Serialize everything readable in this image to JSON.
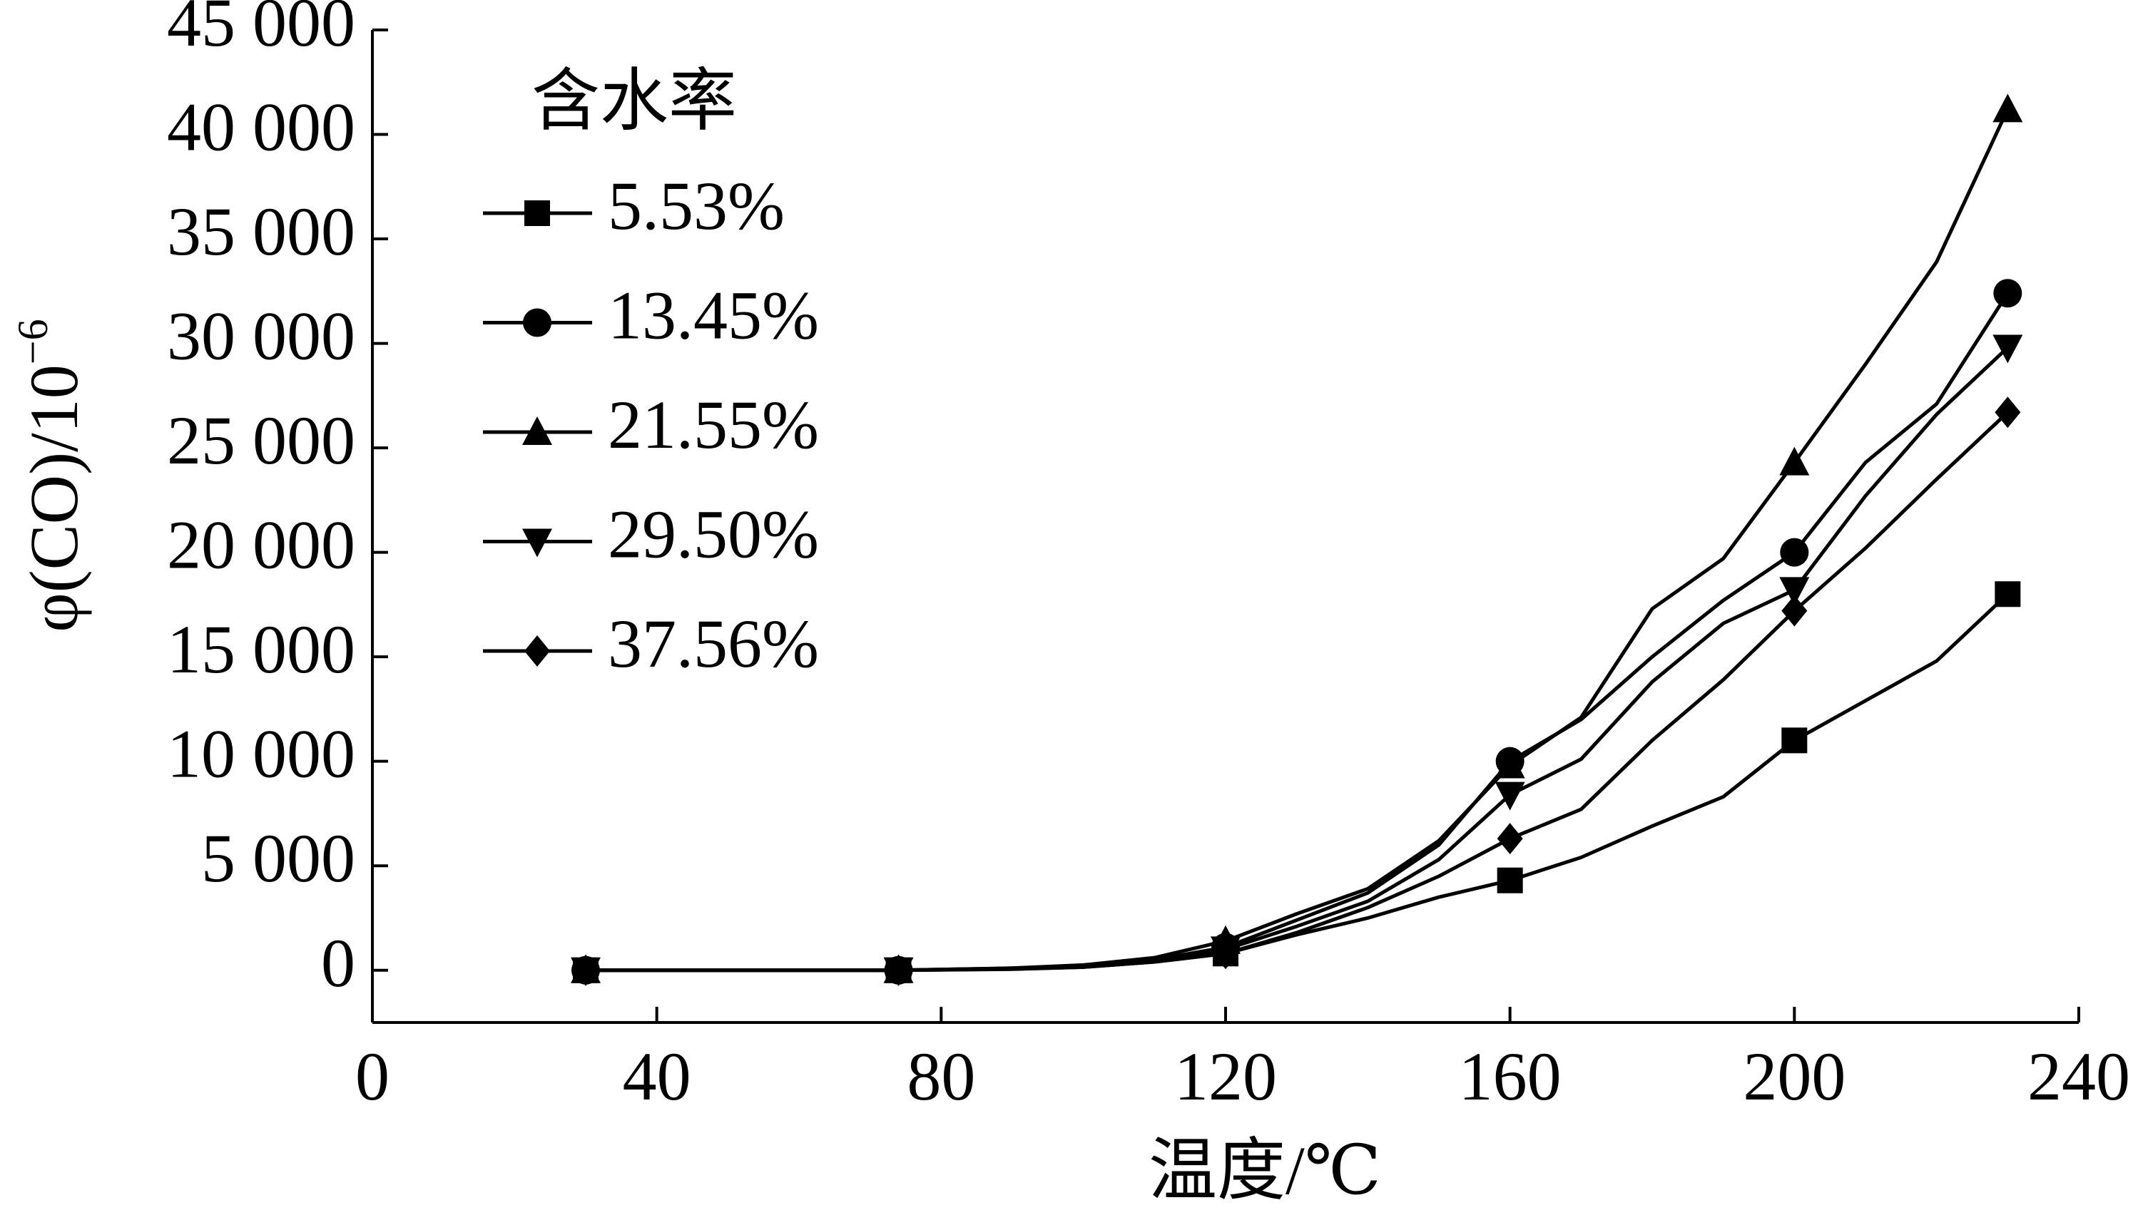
{
  "chart_data": {
    "type": "line",
    "x_label": "温度/℃",
    "y_label": {
      "text": "φ(CO)/10",
      "exponent": "−6"
    },
    "legend_title": "含水率",
    "legend_position": "upper left",
    "x": [
      30,
      74,
      90,
      100,
      110,
      120,
      130,
      140,
      150,
      160,
      170,
      180,
      190,
      200,
      210,
      220,
      230
    ],
    "marker_x": [
      30,
      74,
      120,
      160,
      200,
      230
    ],
    "series": [
      {
        "name": "5.53%",
        "color": "#000000",
        "marker": "square",
        "values": [
          0,
          0,
          50,
          150,
          400,
          800,
          1700,
          2500,
          3500,
          4300,
          5400,
          6900,
          8300,
          11000,
          12900,
          14800,
          18000
        ]
      },
      {
        "name": "13.45%",
        "color": "#000000",
        "marker": "circle",
        "values": [
          0,
          0,
          100,
          200,
          500,
          1100,
          2400,
          3700,
          6000,
          10000,
          12000,
          15000,
          17700,
          20000,
          24300,
          27100,
          32400
        ]
      },
      {
        "name": "21.55%",
        "color": "#000000",
        "marker": "triangle",
        "values": [
          0,
          0,
          100,
          250,
          600,
          1400,
          2700,
          3900,
          6200,
          9800,
          12100,
          17300,
          19700,
          24300,
          29000,
          33900,
          41200
        ]
      },
      {
        "name": "29.50%",
        "color": "#000000",
        "marker": "triangle-down",
        "values": [
          0,
          0,
          80,
          200,
          450,
          1000,
          2100,
          3300,
          5300,
          8400,
          10100,
          13800,
          16600,
          18200,
          22700,
          26600,
          29800
        ]
      },
      {
        "name": "37.56%",
        "color": "#000000",
        "marker": "diamond",
        "values": [
          0,
          0,
          60,
          150,
          400,
          800,
          1800,
          3000,
          4500,
          6300,
          7700,
          11000,
          13900,
          17200,
          20200,
          23500,
          26700
        ]
      }
    ],
    "xlim": [
      0,
      240
    ],
    "xticks": [
      0,
      40,
      80,
      120,
      160,
      200,
      240
    ],
    "ylim": [
      -2500,
      45000
    ],
    "yticks": [
      0,
      {
        "value": 5000,
        "label": "5 000"
      },
      {
        "value": 10000,
        "label": "10 000"
      },
      {
        "value": 15000,
        "label": "15 000"
      },
      {
        "value": 20000,
        "label": "20 000"
      },
      {
        "value": 25000,
        "label": "25 000"
      },
      {
        "value": 30000,
        "label": "30 000"
      },
      {
        "value": 35000,
        "label": "35 000"
      },
      {
        "value": 40000,
        "label": "40 000"
      },
      {
        "value": 45000,
        "label": "45 000"
      }
    ],
    "grid": false
  }
}
